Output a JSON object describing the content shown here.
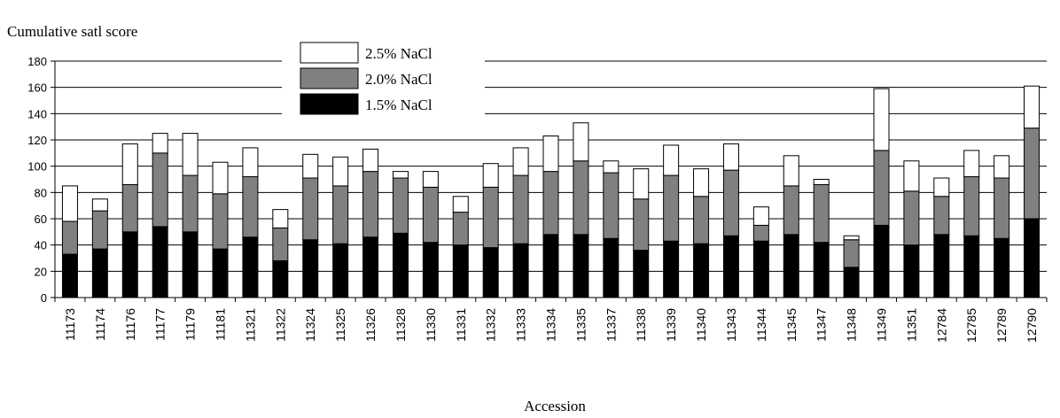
{
  "chart_data": {
    "type": "bar",
    "stacked": true,
    "ylabel": "Cumulative satl score",
    "xlabel": "Accession",
    "ylim": [
      0,
      180
    ],
    "yticks": [
      0,
      20,
      40,
      60,
      80,
      100,
      120,
      140,
      160,
      180
    ],
    "grid": true,
    "legend_position": "top-left",
    "categories": [
      "11173",
      "11174",
      "11176",
      "11177",
      "11179",
      "11181",
      "11321",
      "11322",
      "11324",
      "11325",
      "11326",
      "11328",
      "11330",
      "11331",
      "11332",
      "11333",
      "11334",
      "11335",
      "11337",
      "11338",
      "11339",
      "11340",
      "11343",
      "11344",
      "11345",
      "11347",
      "11348",
      "11349",
      "11351",
      "12784",
      "12785",
      "12789",
      "12790"
    ],
    "series": [
      {
        "name": "1.5% NaCl",
        "color": "#000000",
        "values": [
          33,
          37,
          50,
          54,
          50,
          37,
          46,
          28,
          44,
          41,
          46,
          49,
          42,
          40,
          38,
          41,
          48,
          48,
          45,
          36,
          43,
          41,
          47,
          43,
          48,
          42,
          23,
          55,
          40,
          48,
          47,
          45,
          60
        ]
      },
      {
        "name": "2.0% NaCl",
        "color": "#808080",
        "values": [
          25,
          29,
          36,
          56,
          43,
          42,
          46,
          25,
          47,
          44,
          50,
          42,
          42,
          25,
          46,
          52,
          48,
          56,
          50,
          39,
          50,
          36,
          50,
          12,
          37,
          44,
          21,
          57,
          41,
          29,
          45,
          46,
          69
        ]
      },
      {
        "name": "2.5% NaCl",
        "color": "#ffffff",
        "values": [
          27,
          9,
          31,
          15,
          32,
          24,
          22,
          14,
          18,
          22,
          17,
          5,
          12,
          12,
          18,
          21,
          27,
          29,
          9,
          23,
          23,
          21,
          20,
          14,
          23,
          4,
          3,
          47,
          23,
          14,
          20,
          17,
          32
        ]
      }
    ]
  }
}
